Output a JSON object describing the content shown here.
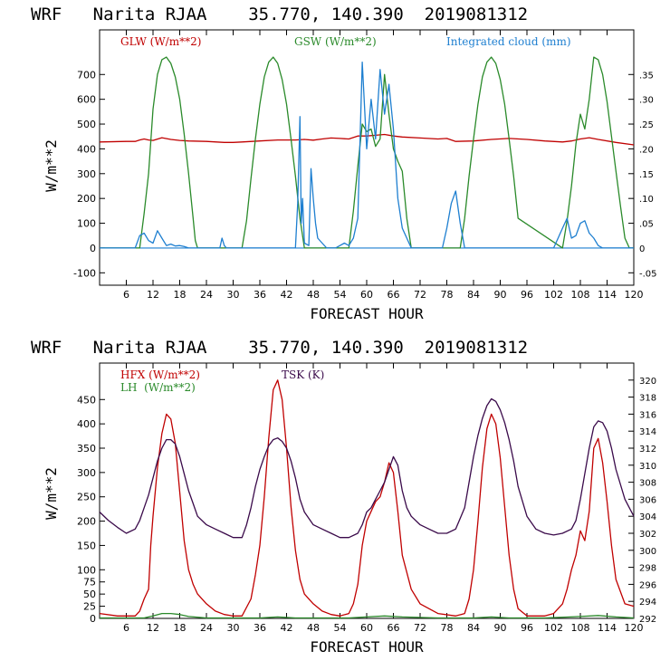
{
  "chart_data": [
    {
      "type": "line",
      "title": "WRF   Narita RJAA    35.770, 140.390  2019081312",
      "xlabel": "FORECAST HOUR",
      "ylabel": "W/m**2",
      "xlim": [
        0,
        120
      ],
      "ylim": [
        -150,
        880
      ],
      "y2lim": [
        -0.075,
        0.44
      ],
      "x_ticks": [
        6,
        12,
        18,
        24,
        30,
        36,
        42,
        48,
        54,
        60,
        66,
        72,
        78,
        84,
        90,
        96,
        102,
        108,
        114,
        120
      ],
      "y_ticks": [
        -100,
        0,
        100,
        200,
        300,
        400,
        500,
        600,
        700
      ],
      "y2_ticks": [
        -0.05,
        0,
        0.05,
        0.1,
        0.15,
        0.2,
        0.25,
        0.3,
        0.35
      ],
      "y2_tick_labels": [
        "-.05",
        "0",
        ".05",
        ".10",
        ".15",
        ".20",
        ".25",
        ".30",
        ".35"
      ],
      "grid": false,
      "zero_line": true,
      "series": [
        {
          "name": "GLW (W/m**2)",
          "color": "#c00000",
          "axis": "left",
          "x": [
            0,
            6,
            8,
            9,
            10,
            11,
            12,
            14,
            16,
            18,
            20,
            24,
            28,
            30,
            32,
            36,
            40,
            44,
            46,
            48,
            50,
            52,
            54,
            56,
            58,
            60,
            62,
            64,
            66,
            68,
            72,
            76,
            78,
            80,
            84,
            88,
            92,
            96,
            100,
            104,
            106,
            108,
            110,
            112,
            116,
            120
          ],
          "y": [
            428,
            430,
            430,
            436,
            440,
            436,
            434,
            445,
            438,
            434,
            432,
            430,
            426,
            426,
            428,
            432,
            436,
            436,
            438,
            435,
            440,
            444,
            442,
            440,
            452,
            452,
            455,
            458,
            452,
            448,
            444,
            440,
            442,
            430,
            432,
            438,
            442,
            438,
            432,
            428,
            432,
            440,
            445,
            438,
            426,
            416
          ]
        },
        {
          "name": "GSW (W/m**2)",
          "color": "#2a8a2a",
          "axis": "left",
          "x": [
            0,
            9,
            10,
            11,
            12,
            13,
            14,
            15,
            16,
            17,
            18,
            19,
            20,
            21,
            21.5,
            22,
            32,
            33,
            34,
            35,
            36,
            37,
            38,
            39,
            40,
            41,
            42,
            43,
            44,
            45,
            46,
            56,
            57,
            58,
            59,
            60,
            61,
            62,
            63,
            64,
            65,
            66,
            67,
            68,
            69,
            70,
            81,
            82,
            83,
            84,
            85,
            86,
            87,
            88,
            89,
            90,
            91,
            92,
            93,
            94,
            104,
            105,
            106,
            107,
            108,
            109,
            110,
            111,
            112,
            113,
            114,
            115,
            116,
            117,
            118,
            119,
            120
          ],
          "y": [
            0,
            0,
            140,
            300,
            560,
            700,
            760,
            770,
            745,
            690,
            600,
            460,
            300,
            120,
            30,
            0,
            0,
            110,
            280,
            440,
            580,
            690,
            750,
            770,
            745,
            680,
            580,
            440,
            290,
            120,
            0,
            0,
            150,
            330,
            500,
            470,
            480,
            410,
            440,
            700,
            540,
            400,
            350,
            310,
            120,
            0,
            0,
            120,
            290,
            440,
            580,
            690,
            750,
            770,
            745,
            680,
            580,
            440,
            290,
            120,
            0,
            110,
            250,
            420,
            540,
            480,
            600,
            770,
            760,
            700,
            590,
            450,
            310,
            170,
            40,
            0,
            0
          ]
        },
        {
          "name": "Integrated cloud (mm)",
          "color": "#1e7fd0",
          "axis": "right",
          "x": [
            0,
            8,
            9,
            10,
            11,
            12,
            13,
            14,
            15,
            16,
            17,
            18,
            19,
            20,
            27,
            27.5,
            28,
            28.5,
            34,
            44,
            44.5,
            45,
            45.3,
            45.6,
            46,
            47,
            47.5,
            48,
            48.5,
            49,
            50,
            51,
            52,
            53,
            54,
            55,
            56,
            57,
            58,
            59,
            60,
            61,
            62,
            63,
            64,
            65,
            66,
            67,
            68,
            69,
            70,
            77,
            78,
            79,
            80,
            81,
            82,
            90,
            102,
            103,
            104,
            105,
            106,
            107,
            108,
            109,
            110,
            111,
            112,
            113,
            114,
            120
          ],
          "y": [
            0,
            0,
            0.025,
            0.03,
            0.015,
            0.01,
            0.035,
            0.02,
            0.005,
            0.008,
            0.004,
            0.005,
            0.003,
            0,
            0,
            0.02,
            0.005,
            0,
            0,
            0,
            0.09,
            0.265,
            0.05,
            0.1,
            0.01,
            0.005,
            0.16,
            0.1,
            0.05,
            0.02,
            0.01,
            0,
            0,
            0,
            0.005,
            0.01,
            0.005,
            0.02,
            0.06,
            0.375,
            0.2,
            0.3,
            0.22,
            0.36,
            0.27,
            0.33,
            0.24,
            0.1,
            0.04,
            0.02,
            0,
            0,
            0.04,
            0.09,
            0.115,
            0.05,
            0,
            0,
            0,
            0.02,
            0.04,
            0.06,
            0.02,
            0.025,
            0.05,
            0.055,
            0.03,
            0.02,
            0.005,
            0,
            0,
            0
          ]
        }
      ]
    },
    {
      "type": "line",
      "title": "WRF   Narita RJAA    35.770, 140.390  2019081312",
      "xlabel": "FORECAST HOUR",
      "ylabel": "W/m**2",
      "xlim": [
        0,
        120
      ],
      "ylim": [
        0,
        525
      ],
      "y2lim": [
        292,
        322
      ],
      "x_ticks": [
        6,
        12,
        18,
        24,
        30,
        36,
        42,
        48,
        54,
        60,
        66,
        72,
        78,
        84,
        90,
        96,
        102,
        108,
        114,
        120
      ],
      "y_ticks": [
        0,
        25,
        50,
        75,
        100,
        150,
        200,
        250,
        300,
        350,
        400,
        450
      ],
      "y2_ticks": [
        292,
        294,
        296,
        298,
        300,
        302,
        304,
        306,
        308,
        310,
        312,
        314,
        316,
        318,
        320
      ],
      "grid": false,
      "series": [
        {
          "name": "HFX (W/m**2)",
          "color": "#c00000",
          "axis": "left",
          "x": [
            0,
            4,
            8,
            9,
            10,
            11,
            11.5,
            12,
            13,
            14,
            15,
            16,
            17,
            18,
            19,
            20,
            21,
            22,
            24,
            26,
            28,
            30,
            32,
            34,
            35,
            36,
            37,
            38,
            39,
            40,
            41,
            42,
            43,
            44,
            45,
            46,
            48,
            50,
            52,
            54,
            56,
            57,
            58,
            59,
            60,
            61,
            62,
            63,
            64,
            65,
            66,
            67,
            68,
            70,
            72,
            76,
            80,
            82,
            83,
            84,
            85,
            86,
            87,
            88,
            89,
            90,
            91,
            92,
            93,
            94,
            96,
            100,
            102,
            104,
            105,
            106,
            107,
            108,
            109,
            110,
            111,
            112,
            113,
            114,
            115,
            116,
            118,
            120
          ],
          "y": [
            10,
            5,
            5,
            15,
            40,
            60,
            150,
            210,
            310,
            380,
            420,
            410,
            360,
            260,
            160,
            100,
            70,
            50,
            30,
            15,
            8,
            5,
            5,
            40,
            90,
            150,
            250,
            370,
            470,
            490,
            450,
            350,
            230,
            140,
            80,
            50,
            30,
            15,
            8,
            5,
            10,
            30,
            70,
            150,
            200,
            220,
            240,
            250,
            280,
            320,
            300,
            220,
            130,
            60,
            30,
            10,
            5,
            10,
            40,
            100,
            200,
            310,
            390,
            420,
            400,
            330,
            230,
            130,
            60,
            20,
            5,
            5,
            10,
            30,
            60,
            100,
            130,
            180,
            160,
            220,
            350,
            370,
            320,
            240,
            150,
            80,
            30,
            25
          ]
        },
        {
          "name": "LH  (W/m**2)",
          "color": "#2a8a2a",
          "axis": "left",
          "x": [
            0,
            10,
            12,
            14,
            16,
            18,
            20,
            24,
            36,
            40,
            44,
            56,
            60,
            64,
            68,
            76,
            84,
            88,
            92,
            100,
            108,
            112,
            116,
            120
          ],
          "y": [
            1,
            1,
            5,
            10,
            10,
            8,
            4,
            1,
            1,
            3,
            1,
            1,
            3,
            5,
            3,
            1,
            1,
            3,
            1,
            1,
            4,
            6,
            3,
            1
          ]
        },
        {
          "name": "TSK (K)",
          "color": "#3a0a4a",
          "axis": "right",
          "x": [
            0,
            2,
            4,
            6,
            8,
            9,
            10,
            11,
            12,
            13,
            14,
            15,
            16,
            17,
            18,
            19,
            20,
            21,
            22,
            24,
            26,
            28,
            30,
            32,
            33,
            34,
            35,
            36,
            37,
            38,
            39,
            40,
            41,
            42,
            43,
            44,
            45,
            46,
            48,
            50,
            52,
            54,
            56,
            58,
            59,
            60,
            61,
            62,
            63,
            64,
            65,
            66,
            67,
            68,
            69,
            70,
            72,
            74,
            76,
            78,
            80,
            82,
            83,
            84,
            85,
            86,
            87,
            88,
            89,
            90,
            91,
            92,
            93,
            94,
            96,
            98,
            100,
            102,
            104,
            106,
            107,
            108,
            109,
            110,
            111,
            112,
            113,
            114,
            115,
            116,
            118,
            120
          ],
          "y": [
            304.5,
            303.5,
            302.7,
            302,
            302.5,
            303.5,
            305,
            306.5,
            308.5,
            310.5,
            312,
            313,
            313,
            312.5,
            311,
            309,
            307,
            305.5,
            304,
            303,
            302.5,
            302,
            301.5,
            301.5,
            303,
            305,
            307.5,
            309.5,
            311,
            312.3,
            313,
            313.2,
            312.8,
            312,
            310.5,
            308.5,
            306,
            304.5,
            303,
            302.5,
            302,
            301.5,
            301.5,
            302,
            303,
            304.5,
            305,
            306,
            307,
            308,
            309.5,
            311,
            310,
            307,
            305,
            304,
            303,
            302.5,
            302,
            302,
            302.5,
            305,
            308,
            311,
            313.5,
            315.5,
            317,
            317.8,
            317.5,
            316.5,
            315,
            313,
            310.5,
            307.5,
            304,
            302.5,
            302,
            301.8,
            302,
            302.5,
            303.5,
            306,
            309,
            312,
            314.5,
            315.2,
            315,
            314,
            312,
            309.5,
            306,
            304
          ]
        }
      ]
    }
  ]
}
